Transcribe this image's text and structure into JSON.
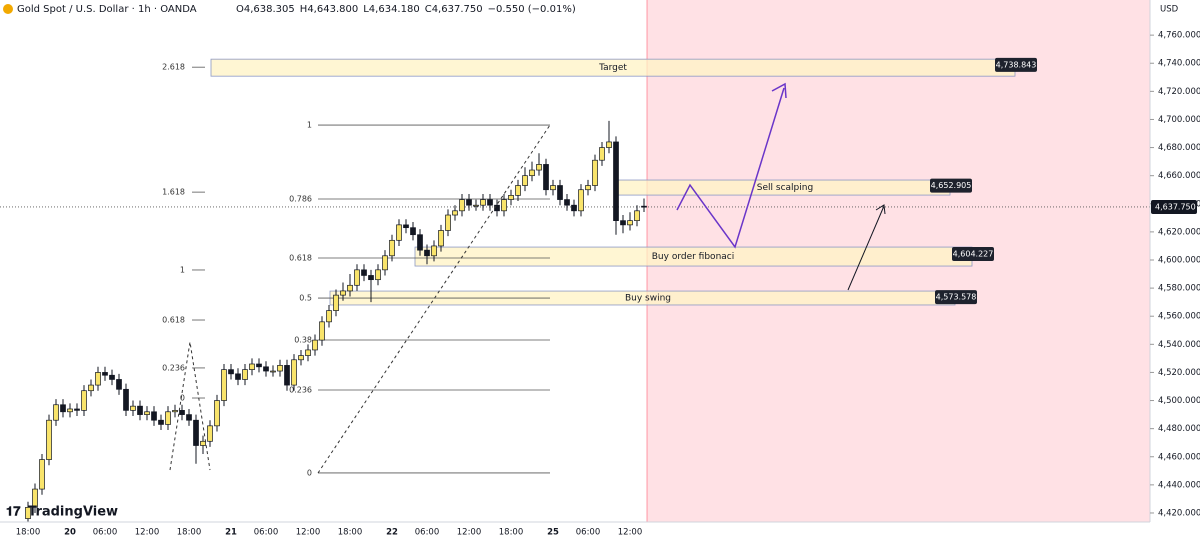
{
  "header": {
    "symbol": "Gold Spot / U.S. Dollar · 1h · OANDA",
    "ohlc": [
      {
        "key": "O",
        "value": "4,638.305"
      },
      {
        "key": "H",
        "value": "4,643.800"
      },
      {
        "key": "L",
        "value": "4,634.180"
      },
      {
        "key": "C",
        "value": "4,637.750"
      }
    ],
    "change": "−0.550 (−0.01%)",
    "brand": "TradingView"
  },
  "chart_data": {
    "type": "candlestick",
    "currency": "USD",
    "categories": [
      "18:00",
      null,
      null,
      null,
      null,
      null,
      "20",
      null,
      null,
      null,
      null,
      "06:00",
      null,
      null,
      null,
      null,
      null,
      "12:00",
      null,
      null,
      null,
      null,
      null,
      "18:00",
      null,
      null,
      null,
      null,
      null,
      "21",
      null,
      null,
      null,
      null,
      "06:00",
      null,
      null,
      null,
      null,
      null,
      "12:00",
      null,
      null,
      null,
      null,
      null,
      "18:00",
      null,
      null,
      null,
      null,
      null,
      "22",
      null,
      null,
      null,
      null,
      "06:00",
      null,
      null,
      null,
      null,
      null,
      "12:00",
      null,
      null,
      null,
      null,
      null,
      "18:00",
      null,
      null,
      null,
      null,
      null,
      "25",
      null,
      null,
      null,
      null,
      "06:00",
      null,
      null,
      null,
      null,
      null,
      "12:00",
      null,
      null
    ],
    "day_labels": [
      "20",
      "21",
      "22",
      "25"
    ],
    "open": [
      4416,
      4424,
      4437,
      4458,
      4486,
      4497,
      4492,
      4494,
      4493,
      4507,
      4511,
      4520,
      4518,
      4515,
      4508,
      4493,
      4496,
      4490,
      4492,
      4486,
      4483,
      4492,
      4493,
      4490,
      4486,
      4468,
      4471,
      4482,
      4500,
      4522,
      4519,
      4515,
      4522,
      4526,
      4524,
      4521,
      4521,
      4525,
      4511,
      4529,
      4532,
      4536,
      4543,
      4556,
      4564,
      4575,
      4578,
      4582,
      4593,
      4589,
      4586,
      4593,
      4603,
      4614,
      4625,
      4623,
      4618,
      4607,
      4603,
      4610,
      4621,
      4632,
      4635,
      4643,
      4639,
      4639,
      4643,
      4639,
      4635,
      4643,
      4646,
      4653,
      4660,
      4664,
      4668,
      4650,
      4653,
      4643,
      4639,
      4635,
      4650,
      4653,
      4671,
      4680,
      4684,
      4628,
      4625,
      4628,
      4638.305
    ],
    "high": [
      4428,
      4441,
      4462,
      4490,
      4501,
      4501,
      4498,
      4498,
      4511,
      4515,
      4524,
      4524,
      4522,
      4519,
      4512,
      4500,
      4500,
      4496,
      4496,
      4490,
      4496,
      4497,
      4497,
      4494,
      4490,
      4475,
      4486,
      4504,
      4526,
      4526,
      4523,
      4526,
      4530,
      4530,
      4528,
      4525,
      4529,
      4529,
      4533,
      4536,
      4540,
      4547,
      4560,
      4568,
      4579,
      4584,
      4590,
      4597,
      4597,
      4593,
      4597,
      4607,
      4618,
      4629,
      4629,
      4627,
      4622,
      4611,
      4614,
      4625,
      4636,
      4639,
      4647,
      4647,
      4643,
      4647,
      4647,
      4643,
      4647,
      4650,
      4657,
      4666,
      4670,
      4676,
      4672,
      4657,
      4657,
      4647,
      4643,
      4654,
      4657,
      4675,
      4684,
      4699,
      4688,
      4632,
      4634,
      4639,
      4643.8
    ],
    "low": [
      4412,
      4420,
      4433,
      4454,
      4482,
      4488,
      4488,
      4489,
      4489,
      4503,
      4507,
      4514,
      4511,
      4504,
      4489,
      4489,
      4486,
      4486,
      4482,
      4479,
      4479,
      4488,
      4486,
      4482,
      4455,
      4462,
      4467,
      4478,
      4496,
      4515,
      4511,
      4511,
      4518,
      4520,
      4517,
      4517,
      4517,
      4507,
      4507,
      4525,
      4528,
      4532,
      4539,
      4552,
      4560,
      4571,
      4574,
      4578,
      4585,
      4570,
      4582,
      4589,
      4599,
      4610,
      4619,
      4614,
      4603,
      4597,
      4599,
      4606,
      4617,
      4628,
      4631,
      4635,
      4635,
      4635,
      4635,
      4631,
      4631,
      4639,
      4642,
      4649,
      4656,
      4660,
      4646,
      4646,
      4639,
      4635,
      4631,
      4631,
      4646,
      4649,
      4667,
      4676,
      4618,
      4619,
      4621,
      4624,
      4634.18
    ],
    "close": [
      4424,
      4437,
      4458,
      4486,
      4497,
      4492,
      4494,
      4493,
      4507,
      4511,
      4520,
      4518,
      4515,
      4508,
      4493,
      4496,
      4490,
      4492,
      4486,
      4483,
      4492,
      4493,
      4490,
      4486,
      4468,
      4471,
      4482,
      4500,
      4522,
      4519,
      4515,
      4522,
      4526,
      4524,
      4521,
      4521,
      4525,
      4511,
      4529,
      4532,
      4536,
      4543,
      4556,
      4564,
      4575,
      4578,
      4582,
      4593,
      4589,
      4586,
      4593,
      4603,
      4614,
      4625,
      4623,
      4618,
      4607,
      4603,
      4610,
      4621,
      4632,
      4635,
      4643,
      4639,
      4639,
      4643,
      4639,
      4635,
      4643,
      4646,
      4653,
      4660,
      4664,
      4668,
      4650,
      4653,
      4643,
      4639,
      4635,
      4650,
      4653,
      4671,
      4680,
      4684,
      4628,
      4625,
      4628,
      4635,
      4637.75
    ],
    "up_color": "#f9e46b",
    "down_color": "#131722",
    "border_color": "#131722",
    "ylim": [
      4415,
      4785
    ],
    "yticks": [
      {
        "value": 4420,
        "label": "4,420.000"
      },
      {
        "value": 4440,
        "label": "4,440.000"
      },
      {
        "value": 4460,
        "label": "4,460.000"
      },
      {
        "value": 4480,
        "label": "4,480.000"
      },
      {
        "value": 4500,
        "label": "4,500.000"
      },
      {
        "value": 4520,
        "label": "4,520.000"
      },
      {
        "value": 4540,
        "label": "4,540.000"
      },
      {
        "value": 4560,
        "label": "4,560.000"
      },
      {
        "value": 4580,
        "label": "4,580.000"
      },
      {
        "value": 4600,
        "label": "4,600.000"
      },
      {
        "value": 4620,
        "label": "4,620.000"
      },
      {
        "value": 4640,
        "label": "4,640.000"
      },
      {
        "value": 4660,
        "label": "4,660.000"
      },
      {
        "value": 4680,
        "label": "4,680.000"
      },
      {
        "value": 4700,
        "label": "4,700.000"
      },
      {
        "value": 4720,
        "label": "4,720.000"
      },
      {
        "value": 4740,
        "label": "4,740.000"
      },
      {
        "value": 4760,
        "label": "4,760.000"
      }
    ],
    "last_price": {
      "value": 4637.75,
      "label": "4,637.750"
    },
    "fib_sets": [
      {
        "levels": [
          {
            "label": "2.618",
            "price": 4737.2
          },
          {
            "label": "1.618",
            "price": 4648.3
          },
          {
            "label": "1",
            "price": 4592.9
          },
          {
            "label": "0.618",
            "price": 4557.3
          },
          {
            "label": "0.236",
            "price": 4523.2
          },
          {
            "label": "0",
            "price": 4501.8
          }
        ]
      },
      {
        "levels": [
          {
            "label": "1",
            "price": 4696.0
          },
          {
            "label": "0.786",
            "price": 4643.4
          },
          {
            "label": "0.618",
            "price": 4601.4
          },
          {
            "label": "0.5",
            "price": 4572.9
          },
          {
            "label": "0.38",
            "price": 4543.1
          },
          {
            "label": "0.236",
            "price": 4507.5
          },
          {
            "label": "0",
            "price": 4448.5
          }
        ]
      }
    ],
    "zones": [
      {
        "name": "Target",
        "top": 4742.9,
        "bottom": 4730.8,
        "price": 4738.843,
        "price_label": "4,738.843"
      },
      {
        "name": "Sell scalping",
        "top": 4656.9,
        "bottom": 4646.2,
        "price": 4652.905,
        "price_label": "4,652.905"
      },
      {
        "name": "Buy order fibonaci",
        "top": 4609.2,
        "bottom": 4595.7,
        "price": 4604.227,
        "price_label": "4,604.227"
      },
      {
        "name": "Buy swing",
        "top": 4577.9,
        "bottom": 4568.0,
        "price": 4573.578,
        "price_label": "4,573.578"
      }
    ],
    "forecast_color": "#ff5a6e"
  }
}
